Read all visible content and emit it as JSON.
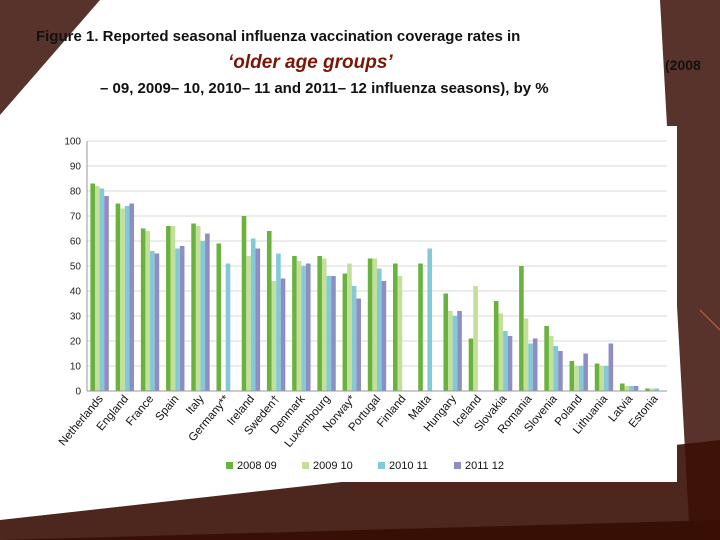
{
  "slide": {
    "title_line1": "Figure 1. Reported seasonal influenza vaccination coverage rates in",
    "title_line2": "‘older age groups’",
    "title_line3": "(2008",
    "title_line4": "– 09, 2009– 10, 2010– 11 and 2011– 12 influenza seasons), by %"
  },
  "colors": {
    "background_dark": "#3a0f06",
    "background_stripe": "#7a2a12",
    "title_accent": "#7a1606"
  },
  "chart_data": {
    "type": "bar",
    "title": "",
    "xlabel": "",
    "ylabel": "",
    "ylim": [
      0,
      100
    ],
    "yticks": [
      0,
      10,
      20,
      30,
      40,
      50,
      60,
      70,
      80,
      90,
      100
    ],
    "grid": true,
    "legend_position": "bottom",
    "categories": [
      "Netherlands",
      "England",
      "France",
      "Spain",
      "Italy",
      "Germany**",
      "Ireland",
      "Sweden†",
      "Denmark",
      "Luxembourg",
      "Norway*",
      "Portugal",
      "Finland",
      "Malta",
      "Hungary",
      "Iceland",
      "Slovakia",
      "Romania",
      "Slovenia",
      "Poland",
      "Lithuania",
      "Latvia",
      "Estonia"
    ],
    "series": [
      {
        "name": "2008 09",
        "color": "#6ab23e",
        "values": [
          83,
          75,
          65,
          66,
          67,
          59,
          70,
          64,
          54,
          54,
          47,
          53,
          51,
          51,
          39,
          21,
          36,
          50,
          26,
          12,
          11,
          3,
          1
        ]
      },
      {
        "name": "2009 10",
        "color": "#c3df9a",
        "values": [
          82,
          73,
          64,
          66,
          66,
          null,
          54,
          44,
          52,
          53,
          51,
          53,
          46,
          null,
          32,
          42,
          31,
          29,
          22,
          10,
          10,
          2,
          1
        ]
      },
      {
        "name": "2010 11",
        "color": "#84c9d8",
        "values": [
          81,
          74,
          56,
          57,
          60,
          51,
          61,
          55,
          50,
          46,
          42,
          49,
          null,
          57,
          30,
          null,
          24,
          19,
          18,
          10,
          10,
          2,
          1
        ]
      },
      {
        "name": "2011 12",
        "color": "#8f8ec3",
        "values": [
          78,
          75,
          55,
          58,
          63,
          null,
          57,
          45,
          51,
          46,
          37,
          44,
          null,
          null,
          32,
          null,
          22,
          21,
          16,
          15,
          19,
          2,
          null
        ]
      }
    ]
  }
}
